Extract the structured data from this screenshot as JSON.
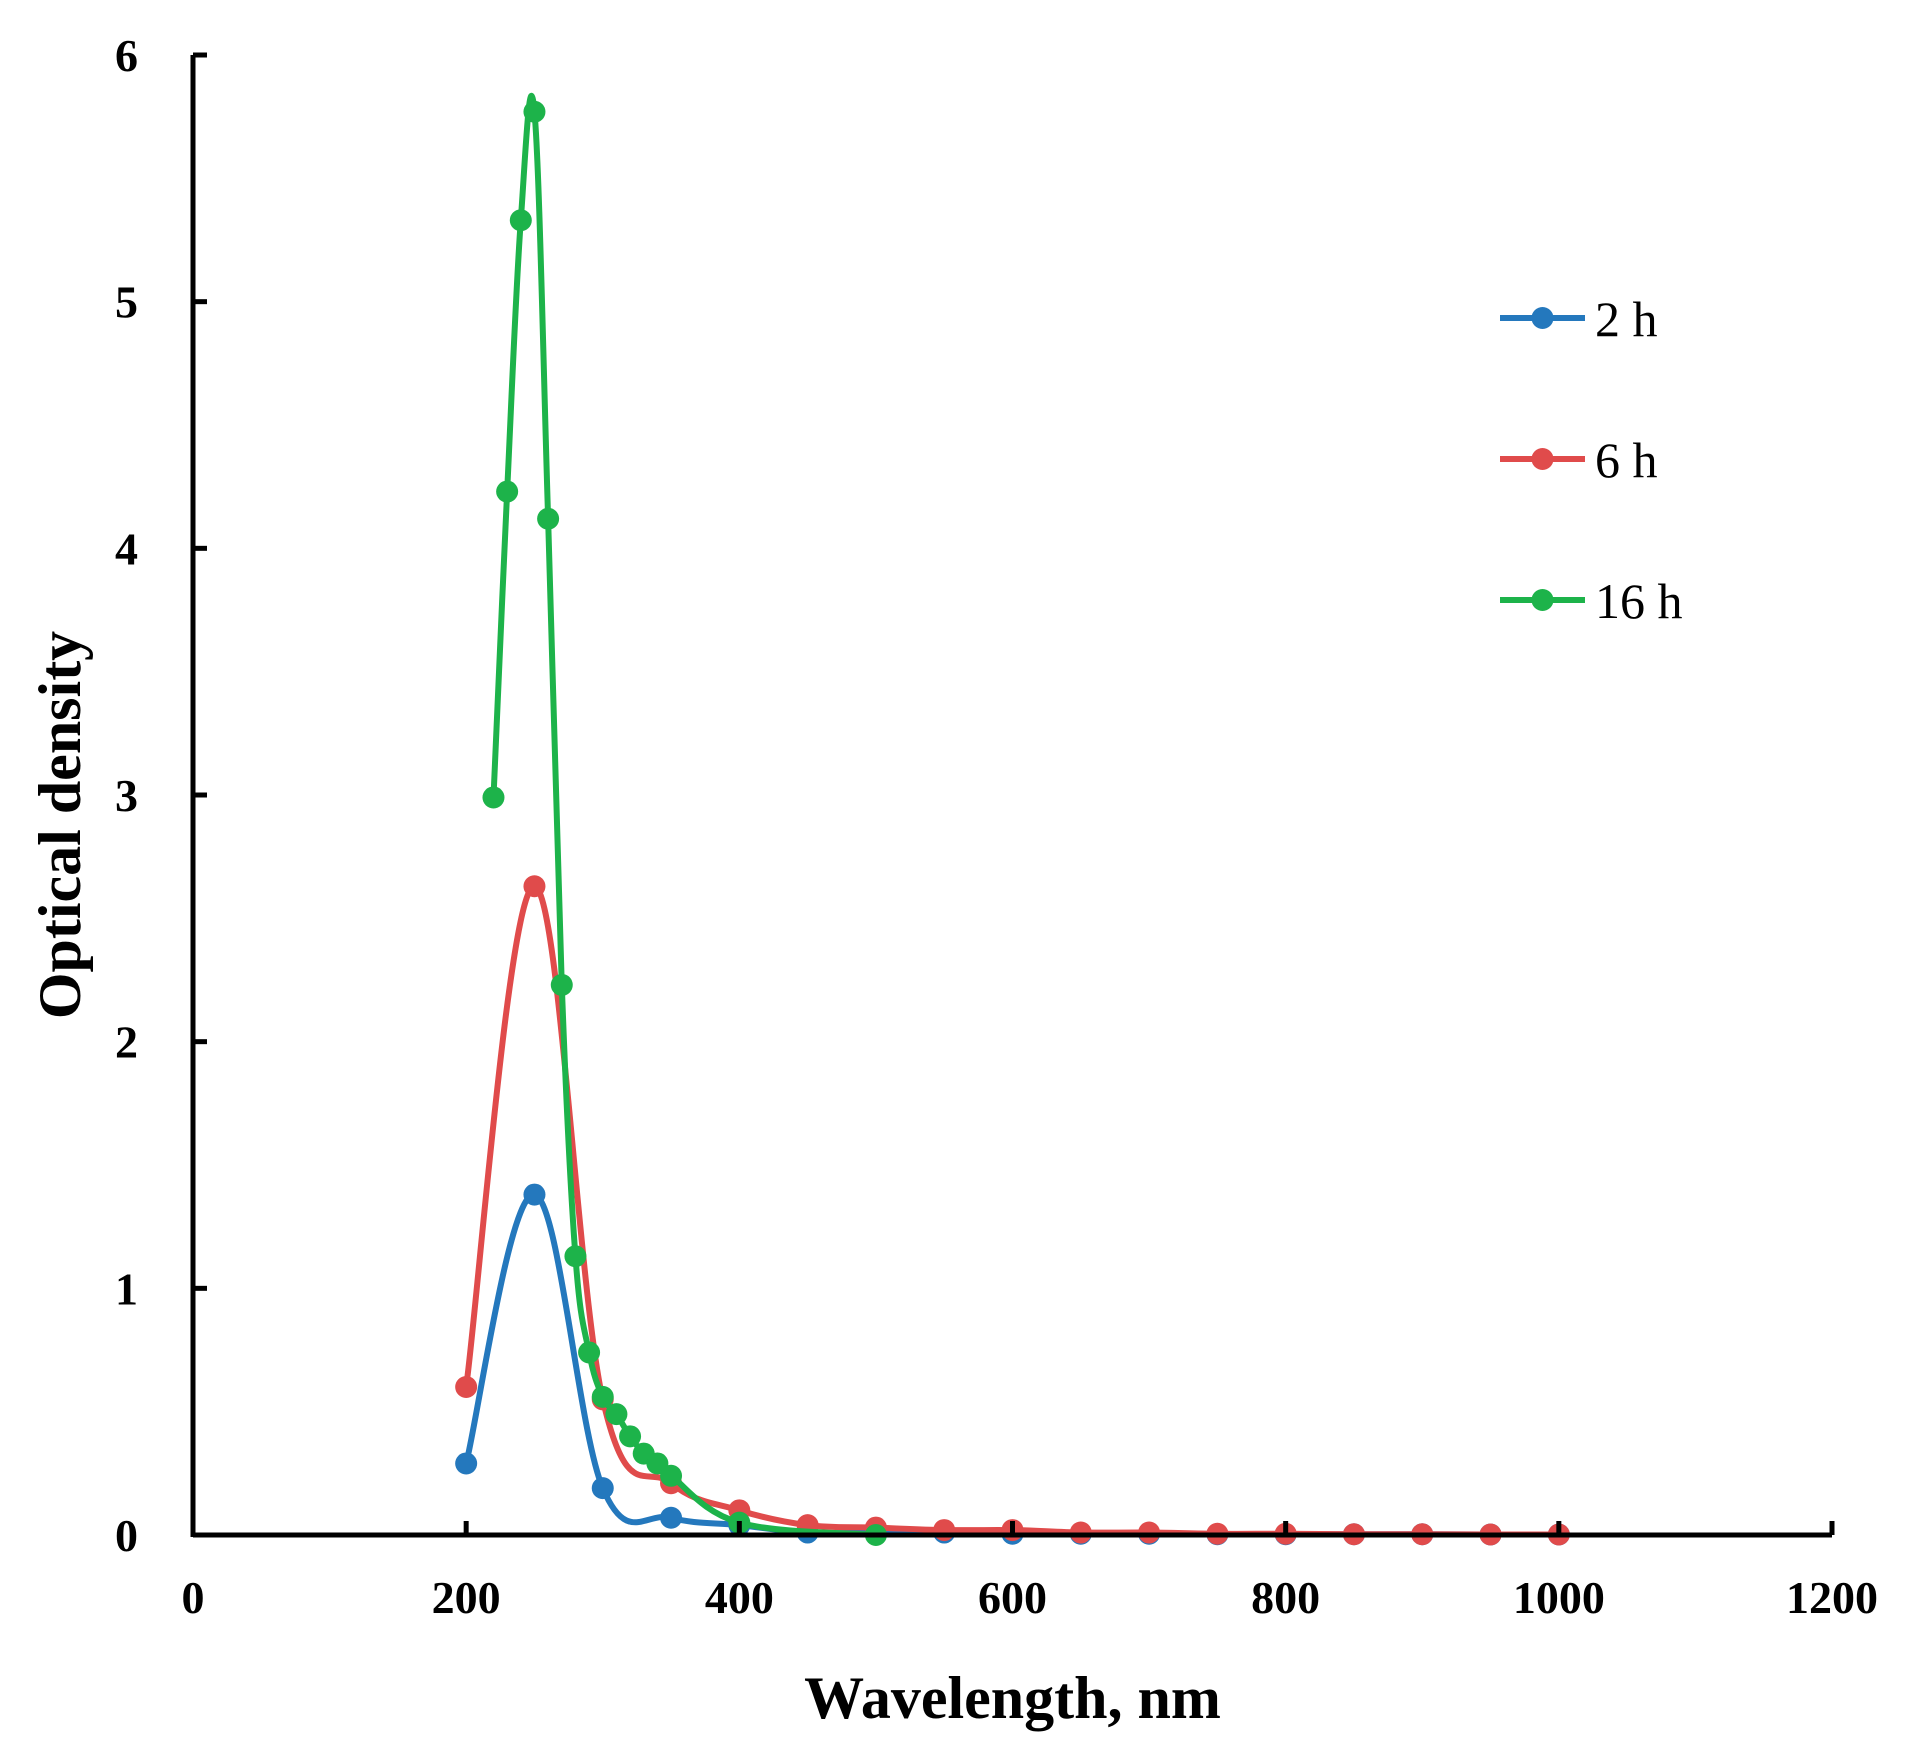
{
  "chart_data": {
    "type": "line",
    "title": "",
    "xlabel": "Wavelength, nm",
    "ylabel": "Optical density",
    "xlim": [
      0,
      1200
    ],
    "ylim": [
      0,
      6
    ],
    "xticks": [
      0,
      200,
      400,
      600,
      800,
      1000,
      1200
    ],
    "yticks": [
      0,
      1,
      2,
      3,
      4,
      5,
      6
    ],
    "x_tick_labels": [
      "0",
      "200",
      "400",
      "600",
      "800",
      "1000",
      "1200"
    ],
    "y_tick_labels": [
      "0",
      "1",
      "2",
      "3",
      "4",
      "5",
      "6"
    ],
    "grid": false,
    "legend_position": "top-right",
    "series": [
      {
        "name": "2 h",
        "color": "#2478bd",
        "x": [
          200,
          250,
          300,
          350,
          400,
          450,
          500,
          550,
          600,
          650,
          700,
          750,
          800,
          850,
          900,
          950,
          1000
        ],
        "y": [
          0.29,
          1.38,
          0.19,
          0.07,
          0.04,
          0.01,
          0.01,
          0.01,
          0.005,
          0.005,
          0.005,
          0.003,
          0.003,
          0.003,
          0.003,
          0.002,
          0.002
        ]
      },
      {
        "name": "6 h",
        "color": "#e04b4b",
        "x": [
          200,
          250,
          300,
          350,
          400,
          450,
          500,
          550,
          600,
          650,
          700,
          750,
          800,
          850,
          900,
          950,
          1000
        ],
        "y": [
          0.6,
          2.63,
          0.55,
          0.21,
          0.1,
          0.04,
          0.03,
          0.02,
          0.02,
          0.01,
          0.01,
          0.005,
          0.005,
          0.003,
          0.003,
          0.002,
          0.002
        ]
      },
      {
        "name": "16 h",
        "color": "#1db34a",
        "x": [
          220,
          230,
          240,
          250,
          260,
          270,
          280,
          290,
          300,
          310,
          320,
          330,
          340,
          350,
          400,
          500
        ],
        "y": [
          2.99,
          4.23,
          5.33,
          5.77,
          4.12,
          2.23,
          1.13,
          0.74,
          0.56,
          0.49,
          0.4,
          0.33,
          0.29,
          0.24,
          0.05,
          0.0
        ]
      }
    ]
  }
}
